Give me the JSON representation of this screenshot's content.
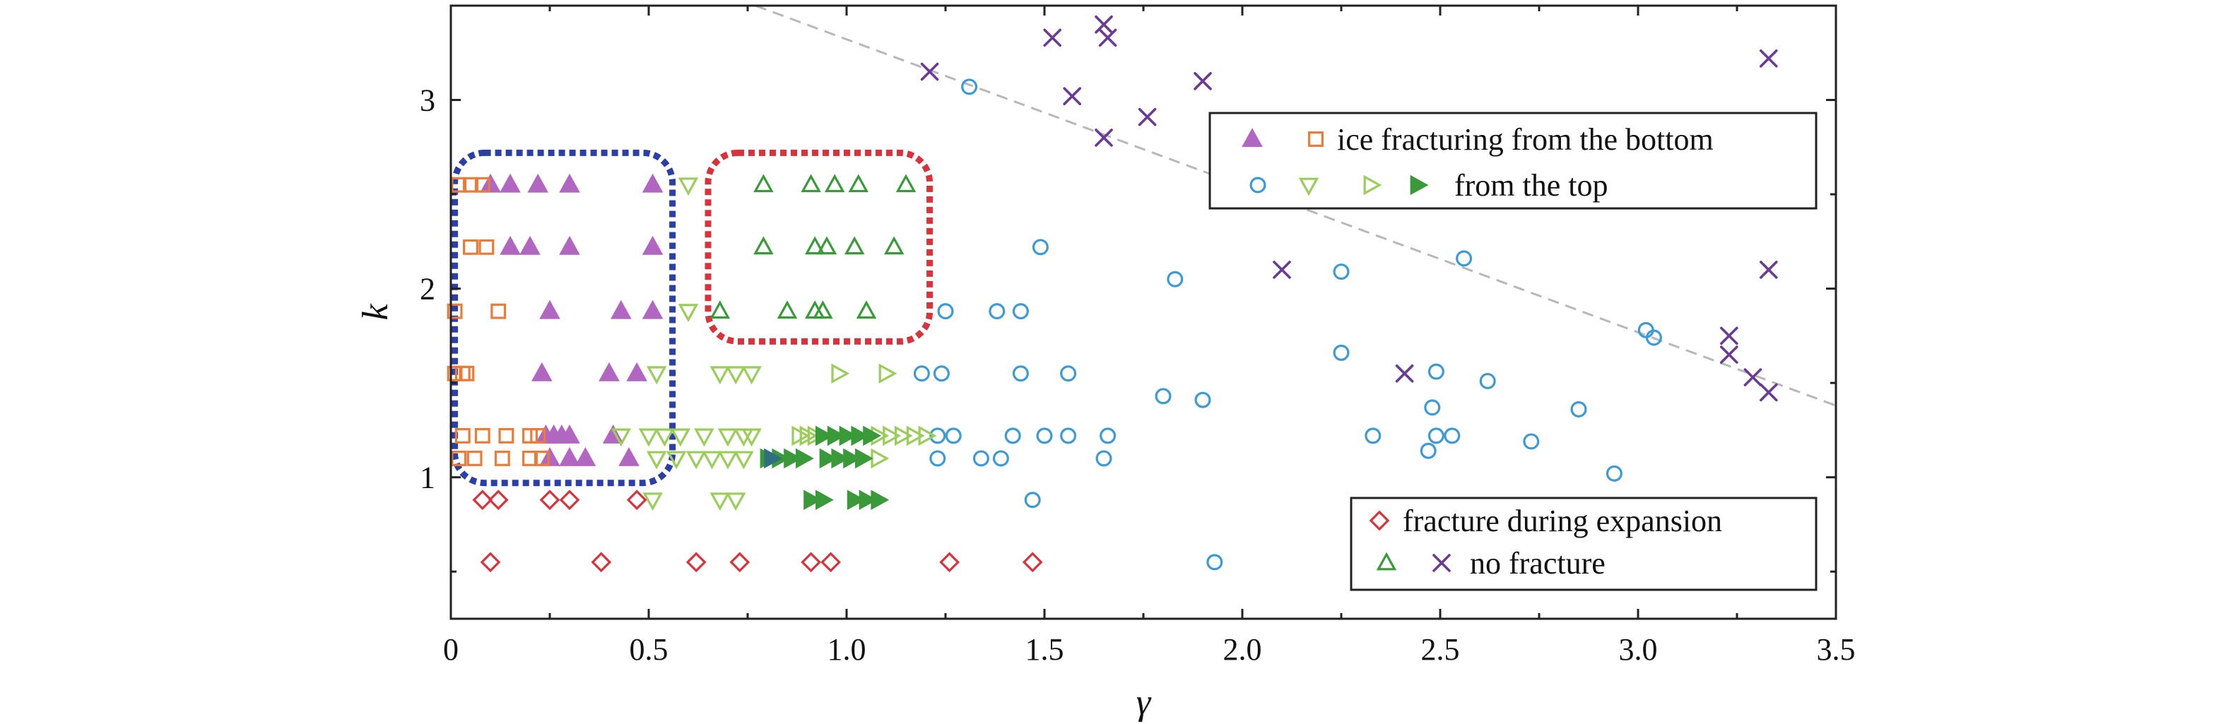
{
  "chart_data": {
    "type": "scatter",
    "xlabel": "γ",
    "ylabel": "k",
    "xlim": [
      0,
      3.5
    ],
    "ylim": [
      0.25,
      3.5
    ],
    "xticks": [
      0,
      0.5,
      1.0,
      1.5,
      2.0,
      2.5,
      3.0,
      3.5
    ],
    "xtick_labels": [
      "0",
      "0.5",
      "1.0",
      "1.5",
      "2.0",
      "2.5",
      "3.0",
      "3.5"
    ],
    "yticks": [
      1,
      2,
      3
    ],
    "ytick_labels": [
      "1",
      "2",
      "3"
    ],
    "grid": false,
    "legends": [
      {
        "placement": "upper-right",
        "entries": [
          {
            "markers": [
              "triangle-up-filled-violet",
              "square-open-orange"
            ],
            "label": "ice fracturing from the bottom"
          },
          {
            "markers": [
              "circle-open-blue",
              "triangle-down-open-lightgreen",
              "triangle-right-open-lightgreen",
              "triangle-right-filled-green"
            ],
            "label": "from the top"
          }
        ]
      },
      {
        "placement": "lower-right",
        "entries": [
          {
            "markers": [
              "diamond-open-red"
            ],
            "label": "fracture during expansion"
          },
          {
            "markers": [
              "triangle-up-open-green",
              "x-purple"
            ],
            "label": "no fracture"
          }
        ]
      }
    ],
    "series": [
      {
        "marker": "triangle-up-filled",
        "color": "#b166c2",
        "x": [
          0.1,
          0.15,
          0.22,
          0.3,
          0.51,
          0.15,
          0.2,
          0.3,
          0.51,
          0.25,
          0.43,
          0.51,
          0.23,
          0.4,
          0.47,
          0.24,
          0.26,
          0.28,
          0.3,
          0.41,
          0.25,
          0.3,
          0.34,
          0.45
        ],
        "y": [
          2.55,
          2.55,
          2.55,
          2.55,
          2.55,
          2.22,
          2.22,
          2.22,
          2.22,
          1.88,
          1.88,
          1.88,
          1.55,
          1.55,
          1.55,
          1.22,
          1.22,
          1.22,
          1.22,
          1.22,
          1.1,
          1.1,
          1.1,
          1.1
        ]
      },
      {
        "marker": "square-open",
        "color": "#e87d3a",
        "x": [
          0.05,
          0.08,
          0.02,
          0.05,
          0.09,
          0.01,
          0.12,
          0.01,
          0.03,
          0.04,
          0.03,
          0.08,
          0.14,
          0.2,
          0.22,
          0.02,
          0.06,
          0.13,
          0.2,
          0.23
        ],
        "y": [
          2.55,
          2.55,
          2.55,
          2.22,
          2.22,
          1.88,
          1.88,
          1.55,
          1.55,
          1.55,
          1.22,
          1.22,
          1.22,
          1.22,
          1.22,
          1.1,
          1.1,
          1.1,
          1.1,
          1.1
        ]
      },
      {
        "marker": "circle-open",
        "color": "#3c9ad6",
        "x": [
          1.31,
          1.49,
          1.83,
          2.25,
          2.56,
          1.25,
          1.38,
          1.44,
          1.19,
          1.24,
          1.44,
          1.56,
          2.25,
          2.49,
          2.62,
          3.02,
          3.04,
          1.8,
          1.9,
          2.48,
          2.85,
          1.23,
          1.27,
          1.42,
          1.5,
          1.56,
          1.66,
          2.33,
          2.49,
          2.53,
          2.73,
          1.23,
          1.34,
          1.39,
          1.65,
          2.47,
          2.94,
          1.47,
          1.93
        ],
        "y": [
          3.07,
          2.22,
          2.05,
          2.09,
          2.16,
          1.88,
          1.88,
          1.88,
          1.55,
          1.55,
          1.55,
          1.55,
          1.66,
          1.56,
          1.51,
          1.78,
          1.74,
          1.43,
          1.41,
          1.37,
          1.36,
          1.22,
          1.22,
          1.22,
          1.22,
          1.22,
          1.22,
          1.22,
          1.22,
          1.22,
          1.19,
          1.1,
          1.1,
          1.1,
          1.1,
          1.14,
          1.02,
          0.88,
          0.55
        ]
      },
      {
        "marker": "triangle-down-open",
        "color": "#9acd5a",
        "x": [
          0.6,
          0.6,
          0.52,
          0.68,
          0.72,
          0.76,
          0.43,
          0.5,
          0.54,
          0.58,
          0.64,
          0.7,
          0.74,
          0.76,
          0.52,
          0.57,
          0.62,
          0.66,
          0.7,
          0.74,
          0.51,
          0.68,
          0.72
        ],
        "y": [
          2.55,
          1.88,
          1.55,
          1.55,
          1.55,
          1.55,
          1.22,
          1.22,
          1.22,
          1.22,
          1.22,
          1.22,
          1.22,
          1.22,
          1.1,
          1.1,
          1.1,
          1.1,
          1.1,
          1.1,
          0.88,
          0.88,
          0.88
        ]
      },
      {
        "marker": "triangle-right-open",
        "color": "#9acd5a",
        "x": [
          0.98,
          1.1,
          0.88,
          0.9,
          0.92,
          1.08,
          1.11,
          1.14,
          1.17,
          1.2,
          1.08
        ],
        "y": [
          1.55,
          1.55,
          1.22,
          1.22,
          1.22,
          1.22,
          1.22,
          1.22,
          1.22,
          1.22,
          1.1
        ]
      },
      {
        "marker": "triangle-right-filled",
        "color": "#3a9a3a",
        "x": [
          0.94,
          0.97,
          1.0,
          1.03,
          1.06,
          0.8,
          0.83,
          0.86,
          0.89,
          0.95,
          0.98,
          1.01,
          1.04,
          0.91,
          0.94,
          1.02,
          1.05,
          1.08
        ],
        "y": [
          1.22,
          1.22,
          1.22,
          1.22,
          1.22,
          1.1,
          1.1,
          1.1,
          1.1,
          1.1,
          1.1,
          1.1,
          1.1,
          0.88,
          0.88,
          0.88,
          0.88,
          0.88
        ]
      },
      {
        "marker": "triangle-right-filled",
        "color": "#2f6f80",
        "x": [
          0.81
        ],
        "y": [
          1.1
        ]
      },
      {
        "marker": "triangle-up-open",
        "color": "#3a9a3a",
        "x": [
          0.79,
          0.91,
          0.97,
          1.03,
          1.15,
          0.79,
          0.92,
          0.95,
          1.02,
          1.12,
          0.85,
          0.92,
          0.94,
          1.05,
          0.68
        ],
        "y": [
          2.55,
          2.55,
          2.55,
          2.55,
          2.55,
          2.22,
          2.22,
          2.22,
          2.22,
          2.22,
          1.88,
          1.88,
          1.88,
          1.88,
          1.88
        ]
      },
      {
        "marker": "x",
        "color": "#6a3a95",
        "x": [
          1.21,
          1.52,
          1.57,
          1.65,
          1.66,
          1.65,
          1.76,
          1.9,
          2.1,
          2.41,
          3.23,
          3.23,
          3.29,
          3.33,
          3.33,
          3.33
        ],
        "y": [
          3.15,
          3.33,
          3.02,
          3.4,
          3.33,
          2.8,
          2.91,
          3.1,
          2.1,
          1.55,
          1.75,
          1.65,
          1.53,
          1.45,
          2.1,
          3.22
        ]
      },
      {
        "marker": "diamond-open",
        "color": "#d8323a",
        "x": [
          0.08,
          0.12,
          0.25,
          0.3,
          0.47,
          0.1,
          0.38,
          0.62,
          0.73,
          0.91,
          0.96,
          1.26,
          1.47
        ],
        "y": [
          0.88,
          0.88,
          0.88,
          0.88,
          0.88,
          0.55,
          0.55,
          0.55,
          0.55,
          0.55,
          0.55,
          0.55,
          0.55
        ]
      }
    ],
    "dashed_line": {
      "x": [
        0.77,
        3.5
      ],
      "y": [
        3.5,
        1.38
      ],
      "color": "#b8b8b8"
    },
    "annotation_boxes": [
      {
        "color": "#2b3fa6",
        "x": [
          0.01,
          0.56
        ],
        "y": [
          0.97,
          2.72
        ]
      },
      {
        "color": "#d8323a",
        "x": [
          0.65,
          1.21
        ],
        "y": [
          1.72,
          2.72
        ]
      }
    ]
  }
}
